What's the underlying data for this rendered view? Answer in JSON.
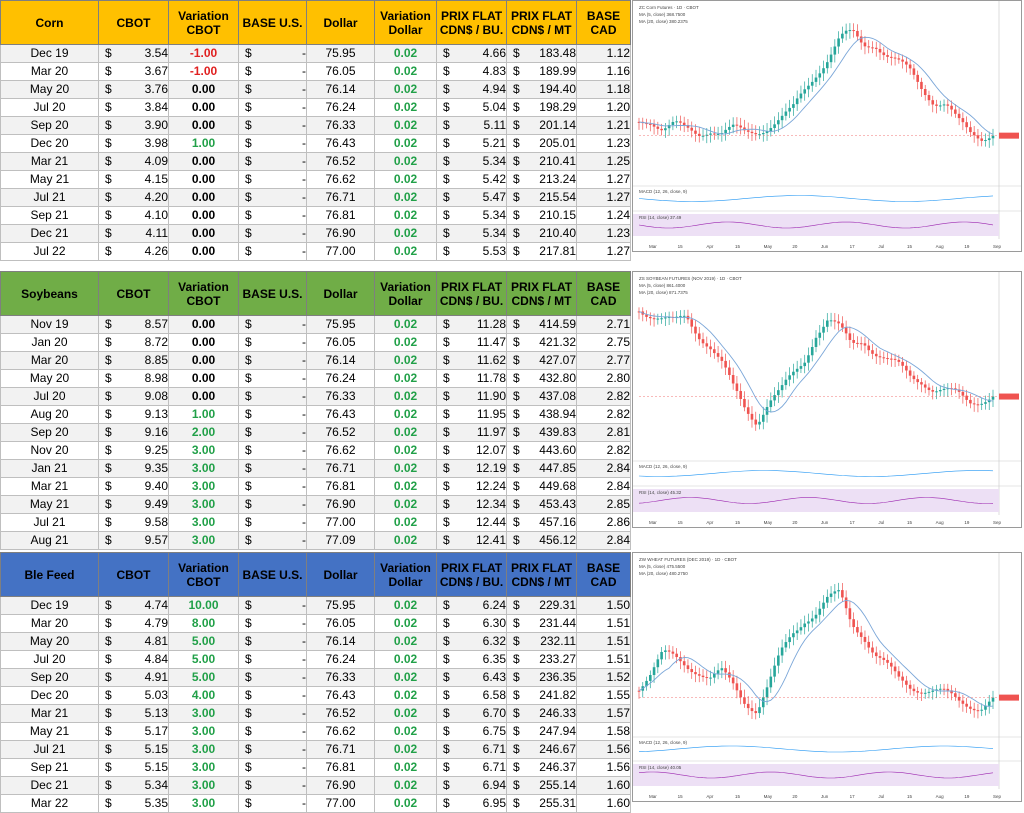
{
  "sections": [
    {
      "name": "Corn",
      "header_color": "#ffc000",
      "headers": [
        "Corn",
        "CBOT",
        "Variation CBOT",
        "BASE U.S.",
        "Dollar",
        "Variation Dollar",
        "PRIX FLAT CDN$ / BU.",
        "PRIX FLAT CDN$ / MT",
        "BASE CAD"
      ],
      "rows": [
        {
          "month": "Dec 19",
          "cbot": "3.54",
          "var": "-1.00",
          "base": "-",
          "dollar": "75.95",
          "vdollar": "0.02",
          "bu": "4.66",
          "mt": "183.48",
          "cad": "1.12"
        },
        {
          "month": "Mar 20",
          "cbot": "3.67",
          "var": "-1.00",
          "base": "-",
          "dollar": "76.05",
          "vdollar": "0.02",
          "bu": "4.83",
          "mt": "189.99",
          "cad": "1.16"
        },
        {
          "month": "May 20",
          "cbot": "3.76",
          "var": "0.00",
          "base": "-",
          "dollar": "76.14",
          "vdollar": "0.02",
          "bu": "4.94",
          "mt": "194.40",
          "cad": "1.18"
        },
        {
          "month": "Jul 20",
          "cbot": "3.84",
          "var": "0.00",
          "base": "-",
          "dollar": "76.24",
          "vdollar": "0.02",
          "bu": "5.04",
          "mt": "198.29",
          "cad": "1.20"
        },
        {
          "month": "Sep 20",
          "cbot": "3.90",
          "var": "0.00",
          "base": "-",
          "dollar": "76.33",
          "vdollar": "0.02",
          "bu": "5.11",
          "mt": "201.14",
          "cad": "1.21"
        },
        {
          "month": "Dec 20",
          "cbot": "3.98",
          "var": "1.00",
          "base": "-",
          "dollar": "76.43",
          "vdollar": "0.02",
          "bu": "5.21",
          "mt": "205.01",
          "cad": "1.23"
        },
        {
          "month": "Mar 21",
          "cbot": "4.09",
          "var": "0.00",
          "base": "-",
          "dollar": "76.52",
          "vdollar": "0.02",
          "bu": "5.34",
          "mt": "210.41",
          "cad": "1.25"
        },
        {
          "month": "May 21",
          "cbot": "4.15",
          "var": "0.00",
          "base": "-",
          "dollar": "76.62",
          "vdollar": "0.02",
          "bu": "5.42",
          "mt": "213.24",
          "cad": "1.27"
        },
        {
          "month": "Jul 21",
          "cbot": "4.20",
          "var": "0.00",
          "base": "-",
          "dollar": "76.71",
          "vdollar": "0.02",
          "bu": "5.47",
          "mt": "215.54",
          "cad": "1.27"
        },
        {
          "month": "Sep 21",
          "cbot": "4.10",
          "var": "0.00",
          "base": "-",
          "dollar": "76.81",
          "vdollar": "0.02",
          "bu": "5.34",
          "mt": "210.15",
          "cad": "1.24"
        },
        {
          "month": "Dec 21",
          "cbot": "4.11",
          "var": "0.00",
          "base": "-",
          "dollar": "76.90",
          "vdollar": "0.02",
          "bu": "5.34",
          "mt": "210.40",
          "cad": "1.23"
        },
        {
          "month": "Jul 22",
          "cbot": "4.26",
          "var": "0.00",
          "base": "-",
          "dollar": "77.00",
          "vdollar": "0.02",
          "bu": "5.53",
          "mt": "217.81",
          "cad": "1.27"
        }
      ],
      "chart": {
        "title": "ZC Corn Futures · 1D · CBOT",
        "line2": "MA (5, close) 368.7500",
        "line3": "MA (20, close) 380.2375",
        "macd_label": "MACD (12, 26, close, 9)",
        "rsi_label": "RSI (14, close) 37.49",
        "months": [
          "Mar",
          "15",
          "Apr",
          "15",
          "May",
          "20",
          "Jun",
          "17",
          "Jul",
          "15",
          "Aug",
          "19",
          "Sep"
        ]
      }
    },
    {
      "name": "Soybeans",
      "header_color": "#70ad47",
      "headers": [
        "Soybeans",
        "CBOT",
        "Variation CBOT",
        "BASE U.S.",
        "Dollar",
        "Variation Dollar",
        "PRIX FLAT CDN$ / BU.",
        "PRIX FLAT CDN$ / MT",
        "BASE CAD"
      ],
      "rows": [
        {
          "month": "Nov 19",
          "cbot": "8.57",
          "var": "0.00",
          "base": "-",
          "dollar": "75.95",
          "vdollar": "0.02",
          "bu": "11.28",
          "mt": "414.59",
          "cad": "2.71"
        },
        {
          "month": "Jan 20",
          "cbot": "8.72",
          "var": "0.00",
          "base": "-",
          "dollar": "76.05",
          "vdollar": "0.02",
          "bu": "11.47",
          "mt": "421.32",
          "cad": "2.75"
        },
        {
          "month": "Mar 20",
          "cbot": "8.85",
          "var": "0.00",
          "base": "-",
          "dollar": "76.14",
          "vdollar": "0.02",
          "bu": "11.62",
          "mt": "427.07",
          "cad": "2.77"
        },
        {
          "month": "May 20",
          "cbot": "8.98",
          "var": "0.00",
          "base": "-",
          "dollar": "76.24",
          "vdollar": "0.02",
          "bu": "11.78",
          "mt": "432.80",
          "cad": "2.80"
        },
        {
          "month": "Jul 20",
          "cbot": "9.08",
          "var": "0.00",
          "base": "-",
          "dollar": "76.33",
          "vdollar": "0.02",
          "bu": "11.90",
          "mt": "437.08",
          "cad": "2.82"
        },
        {
          "month": "Aug 20",
          "cbot": "9.13",
          "var": "1.00",
          "base": "-",
          "dollar": "76.43",
          "vdollar": "0.02",
          "bu": "11.95",
          "mt": "438.94",
          "cad": "2.82"
        },
        {
          "month": "Sep 20",
          "cbot": "9.16",
          "var": "2.00",
          "base": "-",
          "dollar": "76.52",
          "vdollar": "0.02",
          "bu": "11.97",
          "mt": "439.83",
          "cad": "2.81"
        },
        {
          "month": "Nov 20",
          "cbot": "9.25",
          "var": "3.00",
          "base": "-",
          "dollar": "76.62",
          "vdollar": "0.02",
          "bu": "12.07",
          "mt": "443.60",
          "cad": "2.82"
        },
        {
          "month": "Jan 21",
          "cbot": "9.35",
          "var": "3.00",
          "base": "-",
          "dollar": "76.71",
          "vdollar": "0.02",
          "bu": "12.19",
          "mt": "447.85",
          "cad": "2.84"
        },
        {
          "month": "Mar 21",
          "cbot": "9.40",
          "var": "3.00",
          "base": "-",
          "dollar": "76.81",
          "vdollar": "0.02",
          "bu": "12.24",
          "mt": "449.68",
          "cad": "2.84"
        },
        {
          "month": "May 21",
          "cbot": "9.49",
          "var": "3.00",
          "base": "-",
          "dollar": "76.90",
          "vdollar": "0.02",
          "bu": "12.34",
          "mt": "453.43",
          "cad": "2.85"
        },
        {
          "month": "Jul 21",
          "cbot": "9.58",
          "var": "3.00",
          "base": "-",
          "dollar": "77.00",
          "vdollar": "0.02",
          "bu": "12.44",
          "mt": "457.16",
          "cad": "2.86"
        },
        {
          "month": "Aug 21",
          "cbot": "9.57",
          "var": "3.00",
          "base": "-",
          "dollar": "77.09",
          "vdollar": "0.02",
          "bu": "12.41",
          "mt": "456.12",
          "cad": "2.84"
        }
      ],
      "chart": {
        "title": "ZS SOYBEAN FUTURES (NOV 2019) · 1D · CBOT",
        "line2": "MA (5, close) 861.4000",
        "line3": "MA (20, close) 871.7375",
        "macd_label": "MACD (12, 26, close, 9)",
        "rsi_label": "RSI (14, close) 45.32",
        "months": [
          "Mar",
          "15",
          "Apr",
          "15",
          "May",
          "20",
          "Jun",
          "17",
          "Jul",
          "15",
          "Aug",
          "19",
          "Sep"
        ]
      }
    },
    {
      "name": "Ble Feed",
      "header_color": "#4472c4",
      "headers": [
        "Ble Feed",
        "CBOT",
        "Variation CBOT",
        "BASE U.S.",
        "Dollar",
        "Variation Dollar",
        "PRIX FLAT CDN$ / BU.",
        "PRIX FLAT CDN$ / MT",
        "BASE CAD"
      ],
      "rows": [
        {
          "month": "Dec 19",
          "cbot": "4.74",
          "var": "10.00",
          "base": "-",
          "dollar": "75.95",
          "vdollar": "0.02",
          "bu": "6.24",
          "mt": "229.31",
          "cad": "1.50"
        },
        {
          "month": "Mar 20",
          "cbot": "4.79",
          "var": "8.00",
          "base": "-",
          "dollar": "76.05",
          "vdollar": "0.02",
          "bu": "6.30",
          "mt": "231.44",
          "cad": "1.51"
        },
        {
          "month": "May 20",
          "cbot": "4.81",
          "var": "5.00",
          "base": "-",
          "dollar": "76.14",
          "vdollar": "0.02",
          "bu": "6.32",
          "mt": "232.11",
          "cad": "1.51"
        },
        {
          "month": "Jul 20",
          "cbot": "4.84",
          "var": "5.00",
          "base": "-",
          "dollar": "76.24",
          "vdollar": "0.02",
          "bu": "6.35",
          "mt": "233.27",
          "cad": "1.51"
        },
        {
          "month": "Sep 20",
          "cbot": "4.91",
          "var": "5.00",
          "base": "-",
          "dollar": "76.33",
          "vdollar": "0.02",
          "bu": "6.43",
          "mt": "236.35",
          "cad": "1.52"
        },
        {
          "month": "Dec 20",
          "cbot": "5.03",
          "var": "4.00",
          "base": "-",
          "dollar": "76.43",
          "vdollar": "0.02",
          "bu": "6.58",
          "mt": "241.82",
          "cad": "1.55"
        },
        {
          "month": "Mar 21",
          "cbot": "5.13",
          "var": "3.00",
          "base": "-",
          "dollar": "76.52",
          "vdollar": "0.02",
          "bu": "6.70",
          "mt": "246.33",
          "cad": "1.57"
        },
        {
          "month": "May 21",
          "cbot": "5.17",
          "var": "3.00",
          "base": "-",
          "dollar": "76.62",
          "vdollar": "0.02",
          "bu": "6.75",
          "mt": "247.94",
          "cad": "1.58"
        },
        {
          "month": "Jul 21",
          "cbot": "5.15",
          "var": "3.00",
          "base": "-",
          "dollar": "76.71",
          "vdollar": "0.02",
          "bu": "6.71",
          "mt": "246.67",
          "cad": "1.56"
        },
        {
          "month": "Sep 21",
          "cbot": "5.15",
          "var": "3.00",
          "base": "-",
          "dollar": "76.81",
          "vdollar": "0.02",
          "bu": "6.71",
          "mt": "246.37",
          "cad": "1.56"
        },
        {
          "month": "Dec 21",
          "cbot": "5.34",
          "var": "3.00",
          "base": "-",
          "dollar": "76.90",
          "vdollar": "0.02",
          "bu": "6.94",
          "mt": "255.14",
          "cad": "1.60"
        },
        {
          "month": "Mar 22",
          "cbot": "5.35",
          "var": "3.00",
          "base": "-",
          "dollar": "77.00",
          "vdollar": "0.02",
          "bu": "6.95",
          "mt": "255.31",
          "cad": "1.60"
        }
      ],
      "chart": {
        "title": "ZW WHEAT FUTURES (DEC 2019) · 1D · CBOT",
        "line2": "MA (5, close) 475.5500",
        "line3": "MA (20, close) 480.2750",
        "macd_label": "MACD (12, 26, close, 9)",
        "rsi_label": "RSI (14, close) 40.05",
        "months": [
          "Mar",
          "15",
          "Apr",
          "15",
          "May",
          "20",
          "Jun",
          "17",
          "Jul",
          "15",
          "Aug",
          "19",
          "Sep"
        ]
      }
    }
  ],
  "colors": {
    "up": "#26a69a",
    "down": "#ef5350",
    "ma": "#7aa6d8",
    "positive": "#21a048",
    "negative": "#e02020"
  }
}
